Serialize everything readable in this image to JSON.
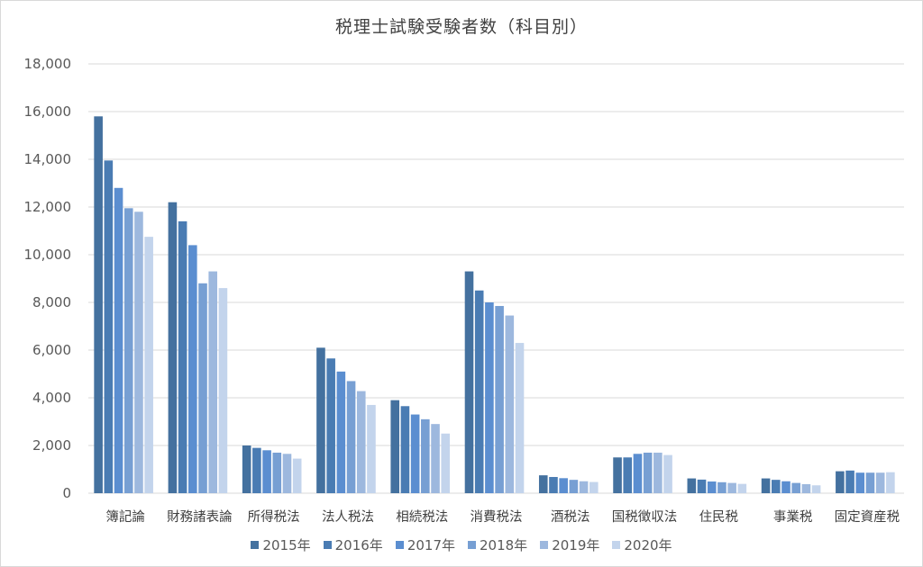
{
  "chart_data": {
    "type": "bar",
    "title": "税理士試験受験者数（科目別）",
    "categories": [
      "簿記論",
      "財務諸表論",
      "所得税法",
      "法人税法",
      "相続税法",
      "消費税法",
      "酒税法",
      "国税徴収法",
      "住民税",
      "事業税",
      "固定資産税"
    ],
    "series": [
      {
        "name": "2015年",
        "color": "#44719f",
        "values": [
          15800,
          12200,
          2000,
          6100,
          3900,
          9300,
          750,
          1500,
          620,
          620,
          920
        ]
      },
      {
        "name": "2016年",
        "color": "#4a7cb3",
        "values": [
          13950,
          11400,
          1900,
          5650,
          3650,
          8500,
          680,
          1500,
          570,
          560,
          950
        ]
      },
      {
        "name": "2017年",
        "color": "#5b8ed0",
        "values": [
          12800,
          10400,
          1800,
          5100,
          3300,
          8000,
          630,
          1650,
          490,
          500,
          860
        ]
      },
      {
        "name": "2018年",
        "color": "#779fd3",
        "values": [
          11950,
          8800,
          1700,
          4700,
          3100,
          7850,
          560,
          1700,
          460,
          430,
          860
        ]
      },
      {
        "name": "2019年",
        "color": "#9db8de",
        "values": [
          11800,
          9300,
          1650,
          4280,
          2900,
          7450,
          500,
          1700,
          430,
          380,
          860
        ]
      },
      {
        "name": "2020年",
        "color": "#c3d4ec",
        "values": [
          10750,
          8600,
          1450,
          3700,
          2500,
          6300,
          470,
          1600,
          390,
          330,
          880
        ]
      }
    ],
    "y_ticks": [
      "0",
      "2,000",
      "4,000",
      "6,000",
      "8,000",
      "10,000",
      "12,000",
      "14,000",
      "16,000",
      "18,000"
    ],
    "ylim": [
      0,
      18000
    ],
    "grid": true,
    "legend_position": "bottom",
    "gridline_color": "#d9d9d9",
    "text_color": "#595959"
  }
}
